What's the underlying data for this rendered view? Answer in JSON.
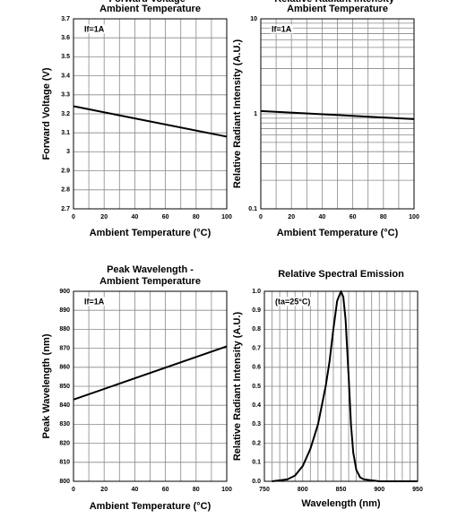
{
  "chart_data": [
    {
      "type": "line",
      "title": "Forward Voltage -",
      "subtitle": "Ambient Temperature",
      "x_label": "Ambient Temperature (°C)",
      "y_label": "Forward Voltage (V)",
      "annotation": "If=1A",
      "x": [
        0,
        100
      ],
      "values": [
        3.24,
        3.08
      ],
      "color": "#000000",
      "xlim": [
        0,
        100
      ],
      "xticks": [
        0,
        20,
        40,
        60,
        80,
        100
      ],
      "ylim": [
        2.7,
        3.7
      ],
      "yticks": [
        2.7,
        2.8,
        2.9,
        3.0,
        3.1,
        3.2,
        3.3,
        3.4,
        3.5,
        3.6,
        3.7
      ],
      "log": false,
      "grid": true
    },
    {
      "type": "line",
      "title": "Relative Radiant Intensity -",
      "subtitle": "Ambient Temperature",
      "x_label": "Ambient Temperature (°C)",
      "y_label": "Relative Radiant Intensity (A.U.)",
      "annotation": "If=1A",
      "x": [
        0,
        100
      ],
      "values": [
        1.07,
        0.88
      ],
      "color": "#000000",
      "xlim": [
        0,
        100
      ],
      "xticks": [
        0,
        20,
        40,
        60,
        80,
        100
      ],
      "ylim": [
        0.1,
        10
      ],
      "yticks": [
        0.1,
        1,
        10
      ],
      "log": true,
      "grid": true
    },
    {
      "type": "line",
      "title": "Peak Wavelength -",
      "subtitle": "Ambient Temperature",
      "x_label": "Ambient Temperature (°C)",
      "y_label": "Peak Wavelength (nm)",
      "annotation": "If=1A",
      "x": [
        0,
        100
      ],
      "values": [
        843,
        871
      ],
      "color": "#000000",
      "xlim": [
        0,
        100
      ],
      "xticks": [
        0,
        20,
        40,
        60,
        80,
        100
      ],
      "ylim": [
        800,
        900
      ],
      "yticks": [
        800,
        810,
        820,
        830,
        840,
        850,
        860,
        870,
        880,
        890,
        900
      ],
      "log": false,
      "grid": true
    },
    {
      "type": "line",
      "title": "Relative Spectral Emission",
      "x_label": "Wavelength (nm)",
      "y_label": "Relative Radiant Intensity (A.U.)",
      "annotation": "(ta=25°C)",
      "x": [
        760,
        780,
        790,
        800,
        810,
        820,
        830,
        835,
        840,
        845,
        850,
        853,
        856,
        860,
        863,
        866,
        870,
        875,
        880,
        900,
        950
      ],
      "values": [
        0,
        0.01,
        0.03,
        0.08,
        0.17,
        0.3,
        0.5,
        0.63,
        0.8,
        0.95,
        1.0,
        0.97,
        0.85,
        0.55,
        0.3,
        0.15,
        0.06,
        0.02,
        0.01,
        0,
        0
      ],
      "color": "#000000",
      "xlim": [
        750,
        950
      ],
      "xticks": [
        750,
        800,
        850,
        900,
        950
      ],
      "ylim": [
        0,
        1
      ],
      "yticks": [
        {
          "value": 0,
          "label": "0.0"
        },
        0.1,
        0.2,
        0.3,
        0.4,
        0.5,
        0.6,
        0.7,
        0.8,
        0.9,
        {
          "value": 1,
          "label": "1.0"
        }
      ],
      "log": false,
      "grid": true
    }
  ]
}
